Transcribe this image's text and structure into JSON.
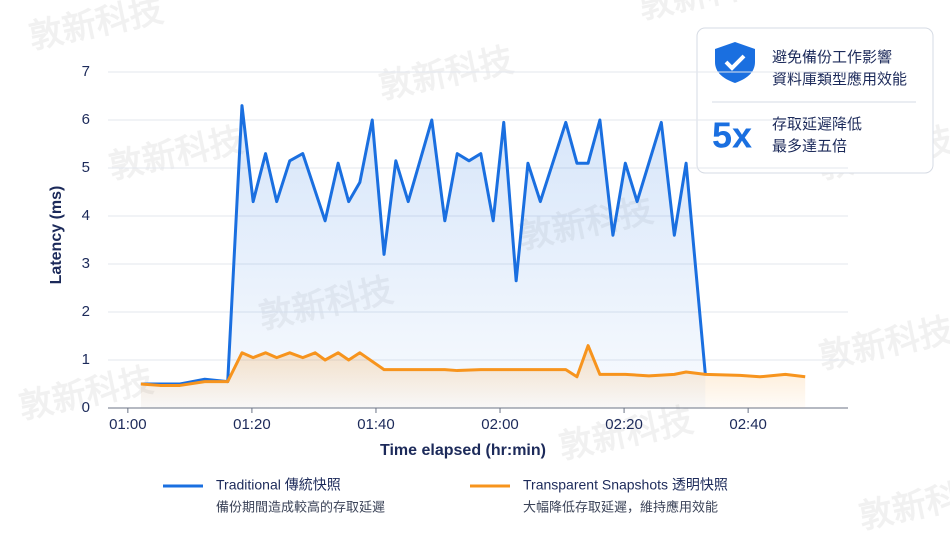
{
  "watermark": "敦新科技",
  "chart_data": {
    "type": "line",
    "x_label": "Time elapsed (hr:min)",
    "y_label": "Latency (ms)",
    "xlim": [
      56.8,
      176.1
    ],
    "ylim": [
      0,
      7
    ],
    "xticks": [
      {
        "value": 60,
        "label": "01:00"
      },
      {
        "value": 80,
        "label": "01:20"
      },
      {
        "value": 100,
        "label": "01:40"
      },
      {
        "value": 120,
        "label": "02:00"
      },
      {
        "value": 140,
        "label": "02:20"
      },
      {
        "value": 160,
        "label": "02:40"
      }
    ],
    "yticks": [
      0,
      1,
      2,
      3,
      4,
      5,
      6,
      7
    ],
    "grid": true,
    "series": [
      {
        "name": "Traditional 傳統快照",
        "description": "備份期間造成較高的存取延遲",
        "color": "#1a6fe0",
        "x": [
          62.1,
          65.2,
          68.4,
          72.4,
          76.1,
          78.4,
          80.2,
          82.2,
          84.0,
          86.1,
          88.2,
          91.8,
          93.9,
          95.6,
          97.4,
          99.4,
          101.3,
          103.2,
          105.2,
          109.0,
          111.1,
          113.1,
          115.0,
          116.9,
          118.9,
          120.6,
          122.6,
          124.5,
          126.5,
          130.6,
          132.4,
          134.2,
          136.1,
          138.2,
          140.2,
          142.1,
          146.0,
          148.1,
          150.0,
          153.1
        ],
        "values": [
          0.5,
          0.5,
          0.5,
          0.6,
          0.55,
          6.3,
          4.3,
          5.3,
          4.3,
          5.15,
          5.3,
          3.9,
          5.1,
          4.3,
          4.7,
          6.0,
          3.2,
          5.15,
          4.3,
          6.0,
          3.9,
          5.3,
          5.15,
          5.3,
          3.9,
          5.95,
          2.65,
          5.1,
          4.3,
          5.95,
          5.1,
          5.1,
          6.0,
          3.6,
          5.1,
          4.3,
          5.95,
          3.6,
          5.1,
          0.7
        ]
      },
      {
        "name": "Transparent Snapshots 透明快照",
        "description": "大幅降低存取延遲，維持應用效能",
        "color": "#f7941d",
        "x": [
          62.1,
          65.2,
          68.4,
          72.4,
          76.1,
          78.4,
          80.2,
          82.2,
          84.0,
          86.1,
          88.2,
          90.2,
          91.8,
          93.9,
          95.6,
          97.4,
          101.3,
          105.2,
          111.1,
          113.1,
          116.9,
          122.6,
          126.5,
          130.6,
          132.4,
          134.2,
          136.1,
          140.2,
          144.0,
          148.1,
          150.0,
          153.1,
          158.7,
          161.9,
          166.0,
          169.2
        ],
        "values": [
          0.5,
          0.47,
          0.47,
          0.55,
          0.55,
          1.15,
          1.05,
          1.15,
          1.05,
          1.15,
          1.05,
          1.15,
          1.0,
          1.15,
          1.0,
          1.15,
          0.8,
          0.8,
          0.8,
          0.78,
          0.8,
          0.8,
          0.8,
          0.8,
          0.65,
          1.3,
          0.7,
          0.7,
          0.67,
          0.7,
          0.75,
          0.7,
          0.68,
          0.65,
          0.7,
          0.65
        ]
      }
    ],
    "callout": {
      "line1": "避免備份工作影響",
      "line2": "資料庫類型應用效能",
      "factor": "5x",
      "text1": "存取延遲降低",
      "text2": "最多達五倍"
    }
  }
}
